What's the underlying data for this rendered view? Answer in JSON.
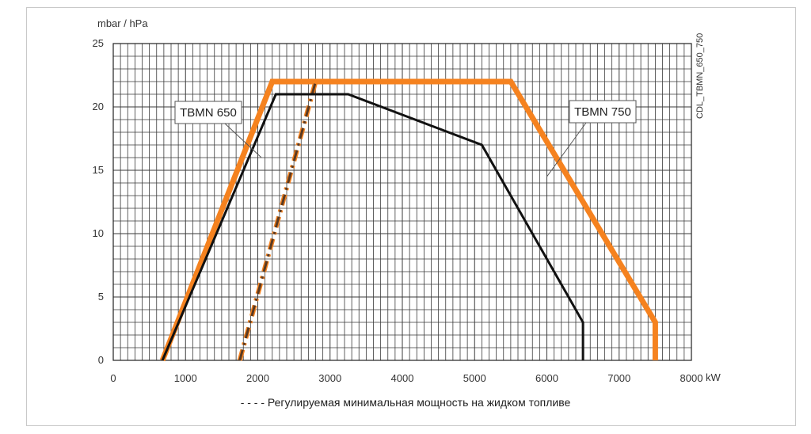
{
  "chart_data": {
    "type": "line",
    "y_unit_label": "mbar / hPa",
    "x_unit_label": "kW",
    "xlim": [
      0,
      8000
    ],
    "ylim": [
      0,
      25
    ],
    "x_ticks": [
      "0",
      "1000",
      "2000",
      "3000",
      "4000",
      "5000",
      "6000",
      "7000",
      "8000"
    ],
    "y_ticks": [
      "0",
      "5",
      "10",
      "15",
      "20",
      "25"
    ],
    "grid": true,
    "side_code": "CDL_TBMN_650_750",
    "series": [
      {
        "name": "TBMN 650",
        "color": "#111111",
        "x": [
          680,
          2250,
          3250,
          5100,
          6500,
          6500
        ],
        "y": [
          0,
          21,
          21,
          17,
          3,
          0
        ]
      },
      {
        "name": "TBMN 750",
        "color": "#f5821f",
        "x": [
          680,
          2200,
          5500,
          7500,
          7500
        ],
        "y": [
          0,
          22,
          22,
          3,
          0
        ]
      },
      {
        "name": "",
        "style": "dash-dot",
        "color": "#5a3a22",
        "x": [
          1750,
          2800
        ],
        "y": [
          0,
          22
        ]
      }
    ],
    "annotations": [
      {
        "text": "TBMN 650",
        "pointer_to": [
          2050,
          16
        ]
      },
      {
        "text": "TBMN 750",
        "pointer_to": [
          6000,
          14.5
        ]
      }
    ],
    "footnote": "- - - - Регулируемая минимальная мощность на жидком топливе"
  }
}
